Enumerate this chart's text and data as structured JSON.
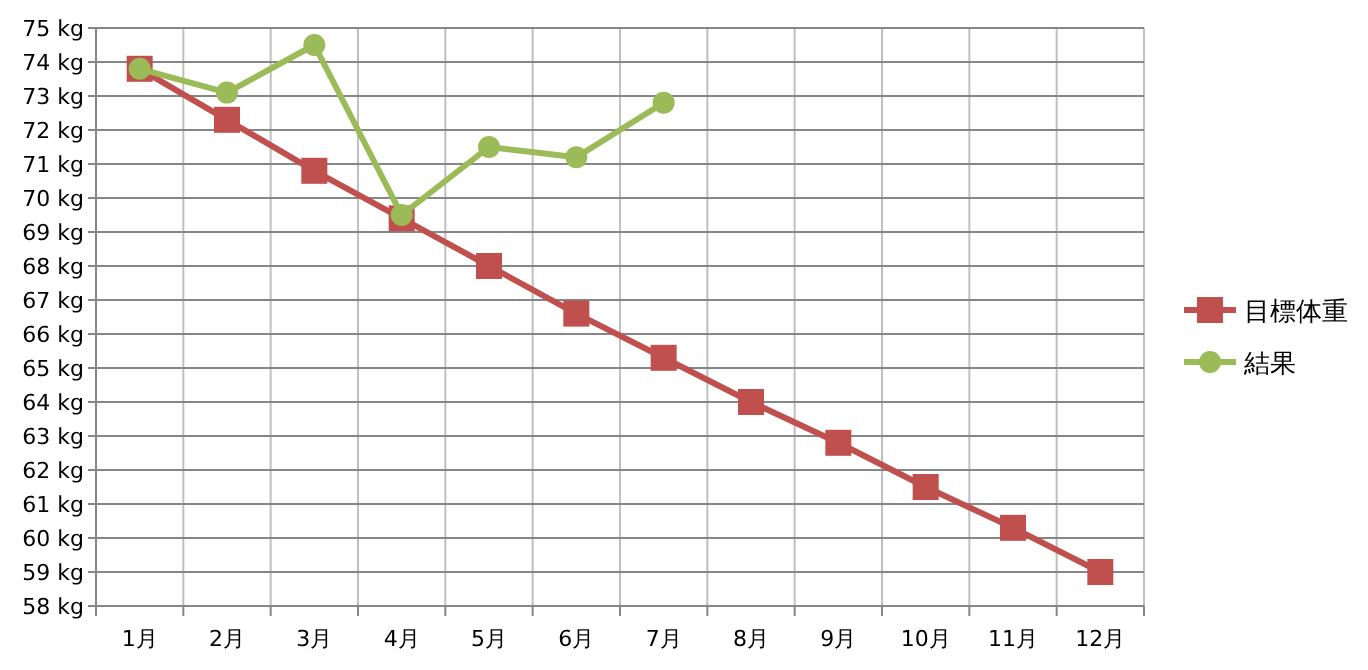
{
  "chart_data": {
    "type": "line",
    "categories": [
      "1月",
      "2月",
      "3月",
      "4月",
      "5月",
      "6月",
      "7月",
      "8月",
      "9月",
      "10月",
      "11月",
      "12月"
    ],
    "series": [
      {
        "name": "目標体重",
        "color": "#c0504d",
        "marker": "square",
        "values": [
          73.8,
          72.3,
          70.8,
          69.4,
          68.0,
          66.6,
          65.3,
          64.0,
          62.8,
          61.5,
          60.3,
          59.0
        ]
      },
      {
        "name": "結果",
        "color": "#9bbb59",
        "marker": "circle",
        "values": [
          73.8,
          73.1,
          74.5,
          69.5,
          71.5,
          71.2,
          72.8,
          null,
          null,
          null,
          null,
          null
        ]
      }
    ],
    "ylim": [
      58,
      75
    ],
    "yticks": [
      {
        "value": 58,
        "label": "58 kg"
      },
      {
        "value": 59,
        "label": "59 kg"
      },
      {
        "value": 60,
        "label": "60 kg"
      },
      {
        "value": 61,
        "label": "61 kg"
      },
      {
        "value": 62,
        "label": "62 kg"
      },
      {
        "value": 63,
        "label": "63 kg"
      },
      {
        "value": 64,
        "label": "64 kg"
      },
      {
        "value": 65,
        "label": "65 kg"
      },
      {
        "value": 66,
        "label": "66 kg"
      },
      {
        "value": 67,
        "label": "67 kg"
      },
      {
        "value": 68,
        "label": "68 kg"
      },
      {
        "value": 69,
        "label": "69 kg"
      },
      {
        "value": 70,
        "label": "70 kg"
      },
      {
        "value": 71,
        "label": "71 kg"
      },
      {
        "value": 72,
        "label": "72 kg"
      },
      {
        "value": 73,
        "label": "73 kg"
      },
      {
        "value": 74,
        "label": "74 kg"
      },
      {
        "value": 75,
        "label": "75 kg"
      }
    ],
    "grid": true,
    "legend": "right"
  }
}
